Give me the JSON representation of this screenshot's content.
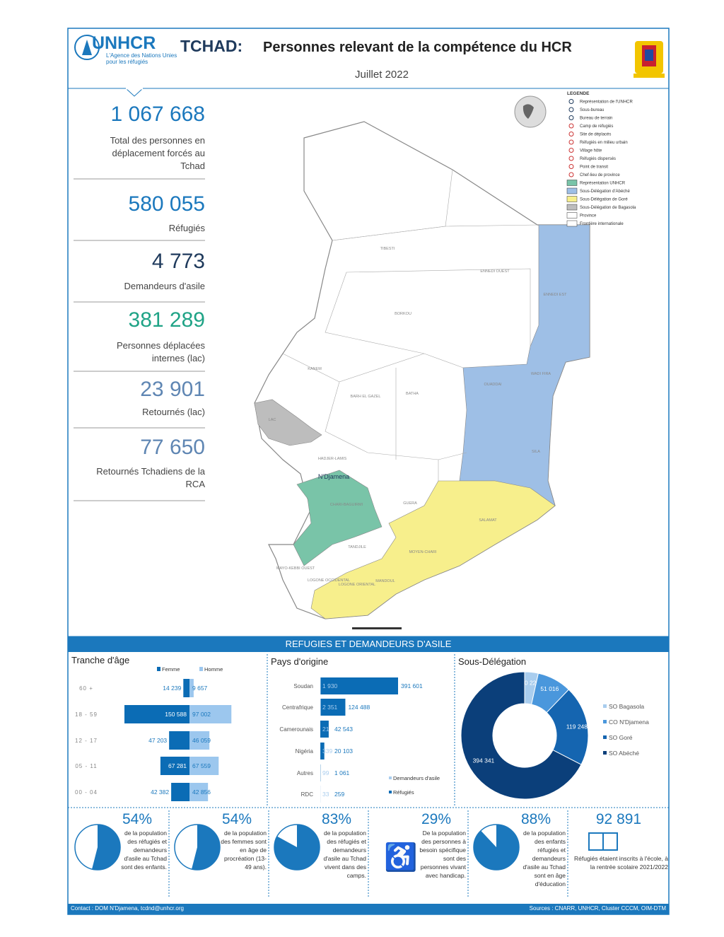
{
  "header": {
    "logo": "UNHCR",
    "agency": "L'Agence des Nations Unies pour les réfugiés",
    "country": "TCHAD:",
    "title": "Personnes relevant de la compétence du HCR",
    "date": "Juillet 2022"
  },
  "stats": [
    {
      "value": "1 067 668",
      "text": "Total des personnes en déplacement forcés au Tchad",
      "color": "#1b78bd"
    },
    {
      "value": "580 055",
      "text": "Réfugiés",
      "color": "#1b78bd"
    },
    {
      "value": "4 773",
      "text": "Demandeurs d'asile",
      "color": "#1f3a5c"
    },
    {
      "value": "381 289",
      "text": "Personnes déplacées internes (lac)",
      "color": "#1fa386"
    },
    {
      "value": "23 901",
      "text": "Retournés (lac)",
      "color": "#5f86b3"
    },
    {
      "value": "77 650",
      "text": "Retournés Tchadiens de la RCA",
      "color": "#5f86b3"
    }
  ],
  "map": {
    "labels": [
      "TIBESTI",
      "ENNEDI OUEST",
      "BORKOU",
      "ENNEDI EST",
      "KANEM",
      "BARH EL GAZEL",
      "BATHA",
      "WADI FIRA",
      "OUADDAI",
      "SILA",
      "HADJER-LAMIS",
      "GUERA",
      "SALAMAT",
      "CHARI-BAGUIRMI",
      "TANDJILE",
      "MOYEN-CHARI",
      "MANDOUL",
      "LOGONE ORIENTAL",
      "LOGONE OCCIDENTAL",
      "MAYO-KEBBI OUEST",
      "LAC",
      "N'Djamena"
    ],
    "legend": [
      "LEGENDE",
      "Représentation de l'UNHCR",
      "Sous-bureau",
      "Bureau de terrain",
      "Camp de réfugiés",
      "Site de déplacés",
      "Réfugiés en milieu urbain",
      "Village hôte",
      "Réfugiés dispersés",
      "Point de transit",
      "Chef-lieu de province",
      "Représentation UNHCR",
      "Sous-Délégation d'Abéché",
      "Sous-Délégation de Goré",
      "Sous-Délégation de Bagasola",
      "Province",
      "Frontière internationale"
    ]
  },
  "section_title": "REFUGIES ET DEMANDEURS D'ASILE",
  "chart_data": [
    {
      "type": "pyramid",
      "title": "Tranche d'âge",
      "categories": [
        "60 +",
        "18 - 59",
        "12 - 17",
        "05 - 11",
        "00 - 04"
      ],
      "series": [
        {
          "name": "Femme",
          "color": "#0b6cb5",
          "values": [
            14239,
            150588,
            47203,
            67281,
            42382
          ],
          "value_labels": [
            "14 239",
            "150 588",
            "47 203",
            "67 281",
            "42 382"
          ]
        },
        {
          "name": "Homme",
          "color": "#9cc7ee",
          "values": [
            9657,
            97002,
            46059,
            67559,
            42856
          ],
          "value_labels": [
            "9 657",
            "97 002",
            "46 059",
            "67 559",
            "42 856"
          ]
        }
      ]
    },
    {
      "type": "stacked-bar",
      "title": "Pays d'origine",
      "categories": [
        "Soudan",
        "Centrafrique",
        "Camerounais",
        "Nigéria",
        "Autres",
        "RDC"
      ],
      "series": [
        {
          "name": "Demandeurs d'asile",
          "color": "#a9cdee",
          "values": [
            1930,
            2351,
            21,
            339,
            99,
            33
          ],
          "value_labels": [
            "1 930",
            "2 351",
            "21",
            "339",
            "99",
            "33"
          ]
        },
        {
          "name": "Réfugiés",
          "color": "#0b6cb5",
          "values": [
            391601,
            124488,
            42543,
            20103,
            1061,
            259
          ],
          "value_labels": [
            "391 601",
            "124 488",
            "42 543",
            "20 103",
            "1 061",
            "259"
          ]
        }
      ]
    },
    {
      "type": "donut",
      "title": "Sous-Délégation",
      "categories": [
        "SO Bagasola",
        "CO N'Djamena",
        "SO Goré",
        "SO Abéché"
      ],
      "values": [
        20223,
        51016,
        119248,
        394341
      ],
      "value_labels": [
        "20 223",
        "51 016",
        "119 248",
        "394 341"
      ],
      "colors": [
        "#a9cdee",
        "#4a97dc",
        "#1565b0",
        "#0b3f7a"
      ]
    },
    {
      "type": "pie",
      "values": [
        54
      ],
      "value_labels": [
        "54%"
      ],
      "text": "de la population des réfugiés et demandeurs d'asile au Tchad sont des enfants."
    },
    {
      "type": "pie",
      "values": [
        54
      ],
      "value_labels": [
        "54%"
      ],
      "text": "de la population des femmes sont en âge de procréation (13-49 ans)."
    },
    {
      "type": "pie",
      "values": [
        83
      ],
      "value_labels": [
        "83%"
      ],
      "text": "de la population des réfugiés et demandeurs d'asile au Tchad vivent dans des camps."
    },
    {
      "type": "icon",
      "values": [
        29
      ],
      "value_labels": [
        "29%"
      ],
      "text": "De la population des personnes à besoin spécifique sont des personnes vivant avec handicap."
    },
    {
      "type": "pie",
      "values": [
        88
      ],
      "value_labels": [
        "88%"
      ],
      "text": "de la population des enfants réfugiés et demandeurs d'asile au Tchad sont en âge d'éducation"
    }
  ],
  "school": {
    "value": "92 891",
    "text": "Réfugiés étaient inscrits à l'école, à la rentrée scolaire 2021/2022"
  },
  "footer": {
    "contact": "Contact : DOM N'Djamena, tcdnd@unhcr.org",
    "sources": "Sources : CNARR, UNHCR, Cluster CCCM, OIM-DTM"
  }
}
